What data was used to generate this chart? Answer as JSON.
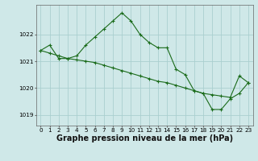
{
  "line1": {
    "x": [
      0,
      1,
      2,
      3,
      4,
      5,
      6,
      7,
      8,
      9,
      10,
      11,
      12,
      13,
      14,
      15,
      16,
      17,
      18,
      19,
      20,
      21,
      22,
      23
    ],
    "y": [
      1021.4,
      1021.6,
      1021.1,
      1021.1,
      1021.2,
      1021.6,
      1021.9,
      1022.2,
      1022.5,
      1022.8,
      1022.5,
      1022.0,
      1021.7,
      1021.5,
      1021.5,
      1020.7,
      1020.5,
      1019.9,
      1019.8,
      1019.2,
      1019.2,
      1019.6,
      1019.8,
      1020.2
    ]
  },
  "line2": {
    "x": [
      0,
      1,
      2,
      3,
      4,
      5,
      6,
      7,
      8,
      9,
      10,
      11,
      12,
      13,
      14,
      15,
      16,
      17,
      18,
      19,
      20,
      21,
      22,
      23
    ],
    "y": [
      1021.4,
      1021.3,
      1021.2,
      1021.1,
      1021.05,
      1021.0,
      1020.95,
      1020.85,
      1020.75,
      1020.65,
      1020.55,
      1020.45,
      1020.35,
      1020.25,
      1020.2,
      1020.1,
      1020.0,
      1019.9,
      1019.8,
      1019.75,
      1019.7,
      1019.65,
      1020.45,
      1020.2
    ]
  },
  "background_color": "#cfe8e8",
  "grid_color": "#aacfcf",
  "line_color": "#1a6b1a",
  "title": "Graphe pression niveau de la mer (hPa)",
  "ylim": [
    1018.6,
    1023.1
  ],
  "xlim": [
    -0.5,
    23.5
  ],
  "yticks": [
    1019,
    1020,
    1021,
    1022
  ],
  "xticks": [
    0,
    1,
    2,
    3,
    4,
    5,
    6,
    7,
    8,
    9,
    10,
    11,
    12,
    13,
    14,
    15,
    16,
    17,
    18,
    19,
    20,
    21,
    22,
    23
  ],
  "xtick_labels": [
    "0",
    "1",
    "2",
    "3",
    "4",
    "5",
    "6",
    "7",
    "8",
    "9",
    "10",
    "11",
    "12",
    "13",
    "14",
    "15",
    "16",
    "17",
    "18",
    "19",
    "20",
    "21",
    "22",
    "23"
  ],
  "title_fontsize": 7.0,
  "tick_fontsize": 5.2
}
